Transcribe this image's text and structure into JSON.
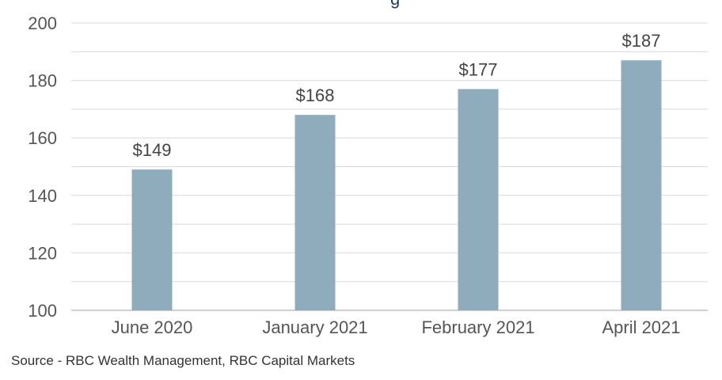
{
  "title_fragment": "g",
  "source_note": "Source - RBC Wealth Management, RBC Capital Markets",
  "colors": {
    "bar": "#8facbd",
    "grid": "#d9d9d9",
    "axis": "#bfbfbf",
    "title": "#1f3a6e"
  },
  "chart_data": {
    "type": "bar",
    "categories": [
      "June 2020",
      "January 2021",
      "February 2021",
      "April 2021"
    ],
    "values": [
      149,
      168,
      177,
      187
    ],
    "data_labels": [
      "$149",
      "$168",
      "$177",
      "$187"
    ],
    "ylim": [
      100,
      200
    ],
    "y_ticks": [
      100,
      120,
      140,
      160,
      180,
      200
    ],
    "y_tick_labels": [
      "100",
      "120",
      "140",
      "160",
      "180",
      "200"
    ],
    "gridlines": true,
    "gridline_step": 10,
    "legend": "none"
  }
}
